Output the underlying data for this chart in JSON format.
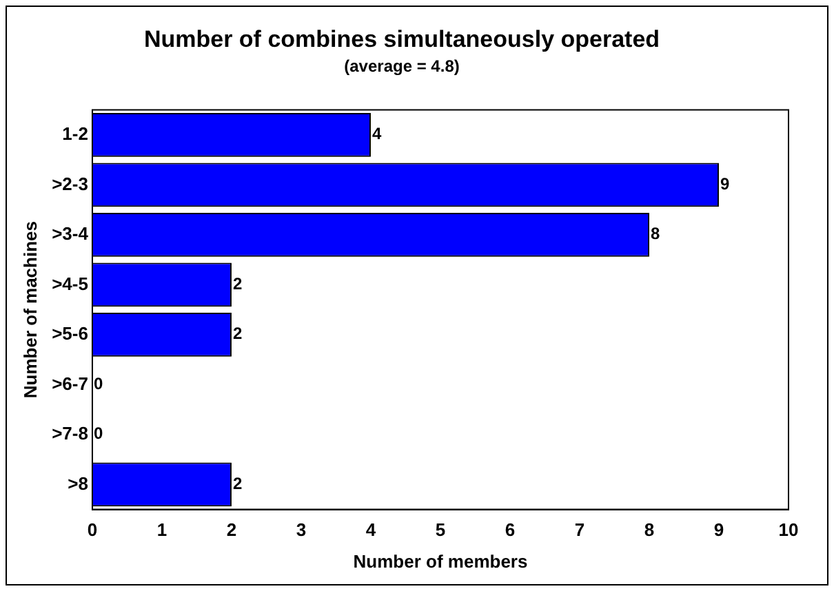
{
  "chart_data": {
    "type": "bar",
    "orientation": "horizontal",
    "title": "Number of combines simultaneously operated",
    "subtitle": "(average = 4.8)",
    "xlabel": "Number of members",
    "ylabel": "Number of machines",
    "categories": [
      "1-2",
      ">2-3",
      ">3-4",
      ">4-5",
      ">5-6",
      ">6-7",
      ">7-8",
      ">8"
    ],
    "values": [
      4,
      9,
      8,
      2,
      2,
      0,
      0,
      2
    ],
    "color": "#0000ff",
    "xlim": [
      0,
      10
    ],
    "xticks": [
      0,
      1,
      2,
      3,
      4,
      5,
      6,
      7,
      8,
      9,
      10
    ],
    "grid": false,
    "legend": false,
    "data_labels": true
  }
}
